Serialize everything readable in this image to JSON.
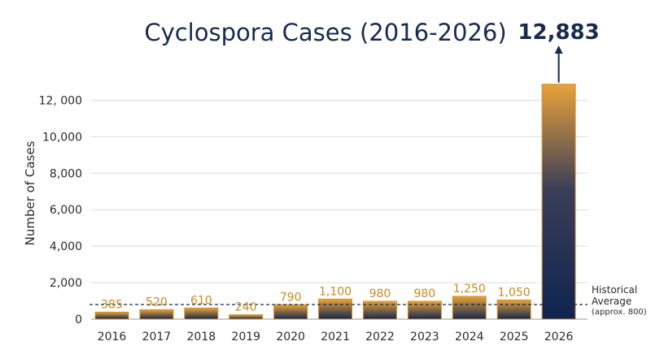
{
  "chart_data": {
    "type": "bar",
    "title": "Cyclospora Cases (2016-2026)",
    "ylabel": "Number of Cases",
    "xlabel": "",
    "ylim": [
      0,
      13000
    ],
    "y_ticks": [
      "0",
      "2,000",
      "4,000",
      "6,000",
      "8,000",
      "10,000",
      "12, 000"
    ],
    "y_tick_values": [
      0,
      2000,
      4000,
      6000,
      8000,
      10000,
      12000
    ],
    "grid": true,
    "categories": [
      "2016",
      "2017",
      "2018",
      "2019",
      "2020",
      "2021",
      "2022",
      "2023",
      "2024",
      "2025",
      "2026"
    ],
    "values": [
      385,
      520,
      610,
      240,
      790,
      1100,
      980,
      980,
      1250,
      1050,
      12883
    ],
    "data_labels": [
      "385",
      "520",
      "610",
      "240",
      "790",
      "1,100",
      "980",
      "980",
      "1,250",
      "1,050",
      "12,883"
    ],
    "reference_line": {
      "value": 800,
      "label_line1": "Historical",
      "label_line2": "Average",
      "label_line3": "(approx. 800)"
    },
    "colors": {
      "bar_top": "#e8a23a",
      "bar_bottom": "#14284f",
      "label": "#c98a1e",
      "peak_label": "#172a4e"
    }
  }
}
